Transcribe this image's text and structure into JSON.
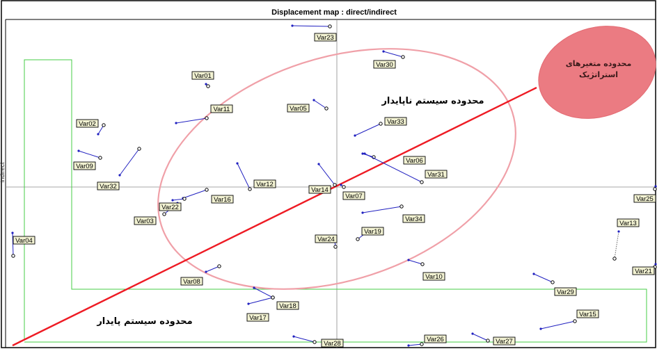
{
  "chart_data": {
    "type": "scatter",
    "title": "Displacement map : direct/indirect",
    "ylabel": "indirect",
    "xlabel": "",
    "grid": false,
    "points": [
      {
        "label": "Var01",
        "direct": [
          296,
          121
        ],
        "indirect": [
          299,
          124
        ]
      },
      {
        "label": "Var02",
        "direct": [
          141,
          193
        ],
        "indirect": [
          149,
          180
        ]
      },
      {
        "label": "Var03",
        "direct": [
          255,
          292
        ],
        "indirect": [
          236,
          308
        ]
      },
      {
        "label": "Var04",
        "direct": [
          18,
          335
        ],
        "indirect": [
          19,
          368
        ]
      },
      {
        "label": "Var05",
        "direct": [
          451,
          144
        ],
        "indirect": [
          469,
          156
        ]
      },
      {
        "label": "Var06",
        "direct": [
          521,
          221
        ],
        "indirect": [
          537,
          226
        ]
      },
      {
        "label": "Var07",
        "direct": [
          490,
          266
        ],
        "indirect": [
          494,
          269
        ]
      },
      {
        "label": "Var08",
        "direct": [
          296,
          391
        ],
        "indirect": [
          315,
          383
        ]
      },
      {
        "label": "Var09",
        "direct": [
          113,
          217
        ],
        "indirect": [
          144,
          227
        ]
      },
      {
        "label": "Var10",
        "direct": [
          587,
          374
        ],
        "indirect": [
          607,
          380
        ]
      },
      {
        "label": "Var11",
        "direct": [
          253,
          177
        ],
        "indirect": [
          297,
          170
        ]
      },
      {
        "label": "Var12",
        "direct": [
          341,
          235
        ],
        "indirect": [
          359,
          272
        ]
      },
      {
        "label": "Var13",
        "direct": [
          889,
          333
        ],
        "indirect": [
          883,
          372
        ]
      },
      {
        "label": "Var14",
        "direct": [
          458,
          236
        ],
        "indirect": [
          481,
          266
        ]
      },
      {
        "label": "Var15",
        "direct": [
          777,
          473
        ],
        "indirect": [
          826,
          462
        ]
      },
      {
        "label": "Var16",
        "direct": [
          263,
          285
        ],
        "indirect": [
          297,
          273
        ]
      },
      {
        "label": "Var17",
        "direct": [
          357,
          437
        ],
        "indirect": [
          392,
          428
        ]
      },
      {
        "label": "Var18",
        "direct": [
          365,
          414
        ],
        "indirect": [
          392,
          428
        ]
      },
      {
        "label": "Var19",
        "direct": [
          532,
          330
        ],
        "indirect": [
          514,
          344
        ]
      },
      {
        "label": "Var21",
        "direct": [
          942,
          380
        ],
        "indirect": [
          941,
          384
        ]
      },
      {
        "label": "Var22",
        "direct": [
          248,
          288
        ],
        "indirect": [
          265,
          286
        ]
      },
      {
        "label": "Var23",
        "direct": [
          420,
          37
        ],
        "indirect": [
          474,
          38
        ]
      },
      {
        "label": "Var24",
        "direct": [
          480,
          339
        ],
        "indirect": [
          482,
          355
        ]
      },
      {
        "label": "Var25",
        "direct": [
          942,
          268
        ],
        "indirect": [
          941,
          272
        ]
      },
      {
        "label": "Var26",
        "direct": [
          587,
          497
        ],
        "indirect": [
          606,
          495
        ]
      },
      {
        "label": "Var27",
        "direct": [
          679,
          480
        ],
        "indirect": [
          701,
          490
        ]
      },
      {
        "label": "Var28",
        "direct": [
          422,
          484
        ],
        "indirect": [
          452,
          492
        ]
      },
      {
        "label": "Var29",
        "direct": [
          767,
          394
        ],
        "indirect": [
          794,
          406
        ]
      },
      {
        "label": "Var30",
        "direct": [
          551,
          74
        ],
        "indirect": [
          579,
          82
        ]
      },
      {
        "label": "Var31",
        "direct": [
          524,
          221
        ],
        "indirect": [
          606,
          262
        ]
      },
      {
        "label": "Var32",
        "direct": [
          172,
          252
        ],
        "indirect": [
          200,
          214
        ]
      },
      {
        "label": "Var33",
        "direct": [
          510,
          195
        ],
        "indirect": [
          547,
          178
        ]
      },
      {
        "label": "Var34",
        "direct": [
          521,
          306
        ],
        "indirect": [
          577,
          297
        ]
      }
    ],
    "annotations": {
      "unstable_zone": "محدوده سیستم ناپایدار",
      "stable_zone": "محدوده سیستم پایدار",
      "strategic_zone": [
        "محدوده متغیرهای",
        "استراتژیک"
      ]
    },
    "colors": {
      "frame": "#000000",
      "axis_lines": "#888888",
      "green_zone": "#44cc44",
      "diagonal": "#ee1b24",
      "ellipse": "#f0a0a8",
      "strategic_fill": "#eb7b82",
      "vector": "#2020c0",
      "label_fill": "#f2f2d2"
    }
  }
}
